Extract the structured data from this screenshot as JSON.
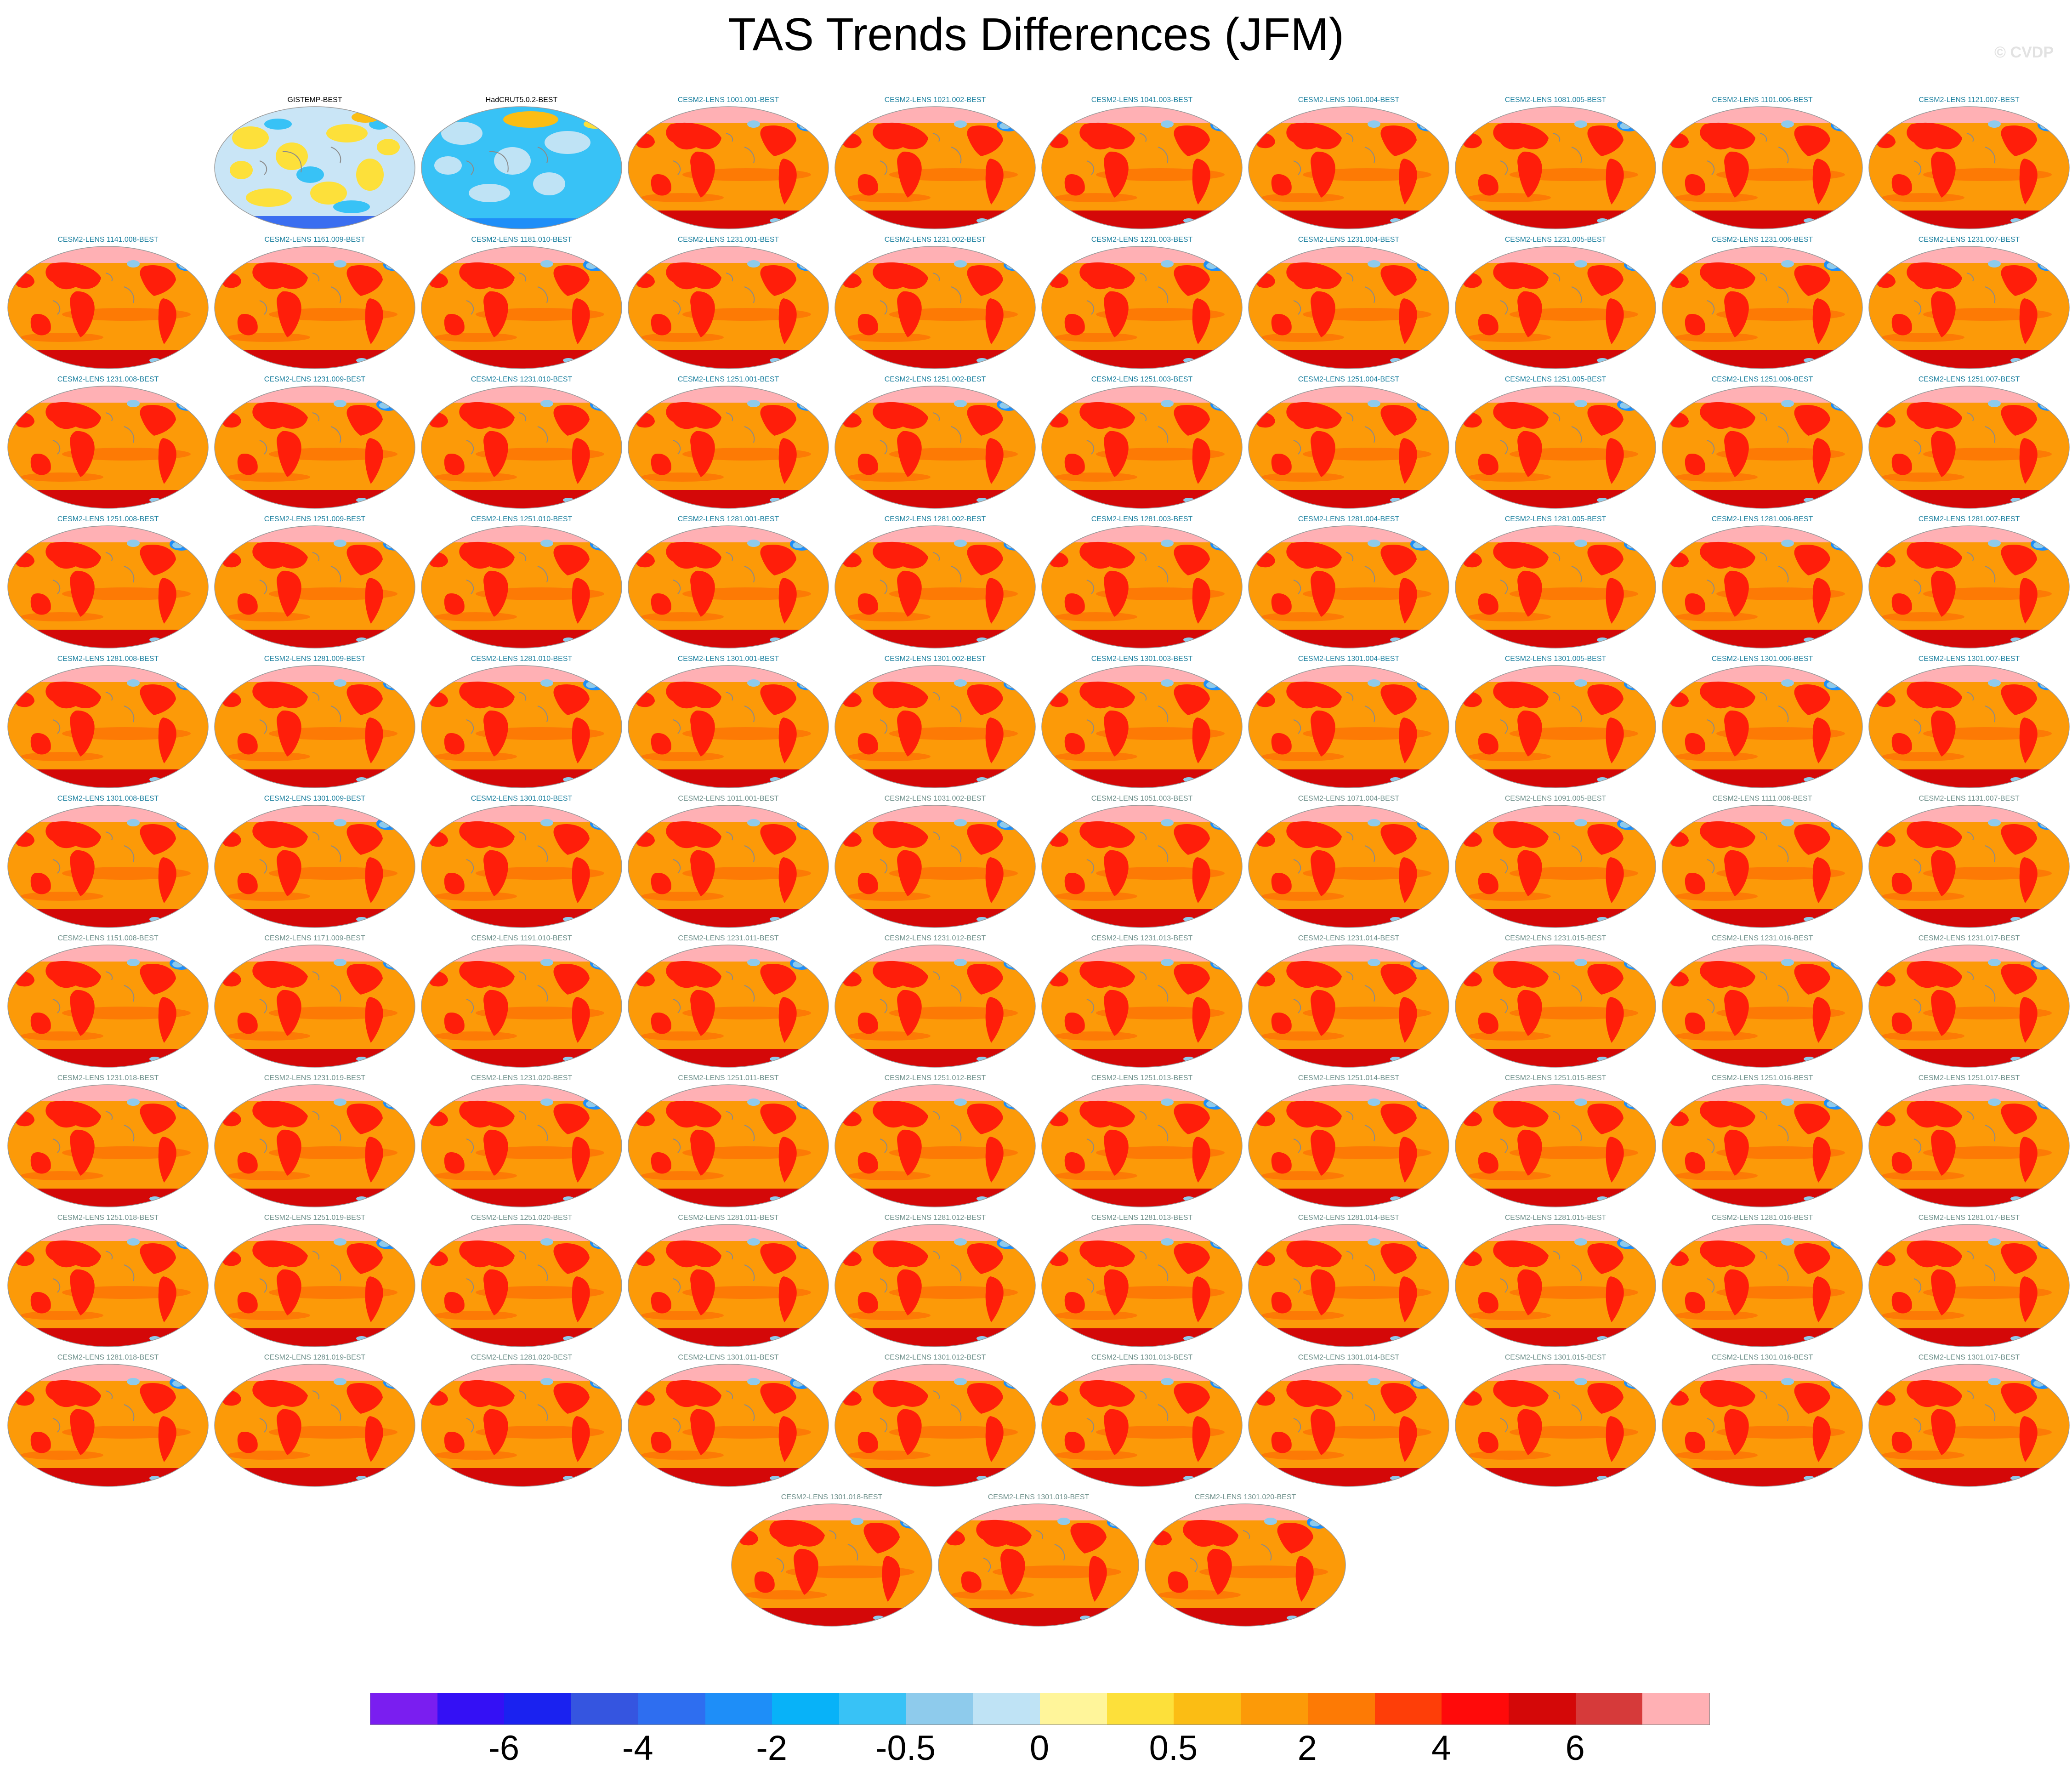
{
  "title": "TAS Trends Differences (JFM)",
  "credit": "© CVDP",
  "panel_rows": [
    [
      {
        "label": "GISTEMP-BEST",
        "type": "obs-a"
      },
      {
        "label": "HadCRUT5.0.2-BEST",
        "type": "obs-b"
      },
      {
        "label": "CESM2-LENS 1001.001-BEST",
        "type": "model"
      },
      {
        "label": "CESM2-LENS 1021.002-BEST",
        "type": "model"
      },
      {
        "label": "CESM2-LENS 1041.003-BEST",
        "type": "model"
      },
      {
        "label": "CESM2-LENS 1061.004-BEST",
        "type": "model"
      },
      {
        "label": "CESM2-LENS 1081.005-BEST",
        "type": "model"
      },
      {
        "label": "CESM2-LENS 1101.006-BEST",
        "type": "model"
      },
      {
        "label": "CESM2-LENS 1121.007-BEST",
        "type": "model"
      }
    ],
    [
      {
        "label": "CESM2-LENS 1141.008-BEST",
        "type": "model"
      },
      {
        "label": "CESM2-LENS 1161.009-BEST",
        "type": "model"
      },
      {
        "label": "CESM2-LENS 1181.010-BEST",
        "type": "model"
      },
      {
        "label": "CESM2-LENS 1231.001-BEST",
        "type": "model"
      },
      {
        "label": "CESM2-LENS 1231.002-BEST",
        "type": "model"
      },
      {
        "label": "CESM2-LENS 1231.003-BEST",
        "type": "model"
      },
      {
        "label": "CESM2-LENS 1231.004-BEST",
        "type": "model"
      },
      {
        "label": "CESM2-LENS 1231.005-BEST",
        "type": "model"
      },
      {
        "label": "CESM2-LENS 1231.006-BEST",
        "type": "model"
      },
      {
        "label": "CESM2-LENS 1231.007-BEST",
        "type": "model"
      }
    ],
    [
      {
        "label": "CESM2-LENS 1231.008-BEST",
        "type": "model"
      },
      {
        "label": "CESM2-LENS 1231.009-BEST",
        "type": "model"
      },
      {
        "label": "CESM2-LENS 1231.010-BEST",
        "type": "model"
      },
      {
        "label": "CESM2-LENS 1251.001-BEST",
        "type": "model"
      },
      {
        "label": "CESM2-LENS 1251.002-BEST",
        "type": "model"
      },
      {
        "label": "CESM2-LENS 1251.003-BEST",
        "type": "model"
      },
      {
        "label": "CESM2-LENS 1251.004-BEST",
        "type": "model"
      },
      {
        "label": "CESM2-LENS 1251.005-BEST",
        "type": "model"
      },
      {
        "label": "CESM2-LENS 1251.006-BEST",
        "type": "model"
      },
      {
        "label": "CESM2-LENS 1251.007-BEST",
        "type": "model"
      }
    ],
    [
      {
        "label": "CESM2-LENS 1251.008-BEST",
        "type": "model"
      },
      {
        "label": "CESM2-LENS 1251.009-BEST",
        "type": "model"
      },
      {
        "label": "CESM2-LENS 1251.010-BEST",
        "type": "model"
      },
      {
        "label": "CESM2-LENS 1281.001-BEST",
        "type": "model"
      },
      {
        "label": "CESM2-LENS 1281.002-BEST",
        "type": "model"
      },
      {
        "label": "CESM2-LENS 1281.003-BEST",
        "type": "model"
      },
      {
        "label": "CESM2-LENS 1281.004-BEST",
        "type": "model"
      },
      {
        "label": "CESM2-LENS 1281.005-BEST",
        "type": "model"
      },
      {
        "label": "CESM2-LENS 1281.006-BEST",
        "type": "model"
      },
      {
        "label": "CESM2-LENS 1281.007-BEST",
        "type": "model"
      }
    ],
    [
      {
        "label": "CESM2-LENS 1281.008-BEST",
        "type": "model"
      },
      {
        "label": "CESM2-LENS 1281.009-BEST",
        "type": "model"
      },
      {
        "label": "CESM2-LENS 1281.010-BEST",
        "type": "model"
      },
      {
        "label": "CESM2-LENS 1301.001-BEST",
        "type": "model"
      },
      {
        "label": "CESM2-LENS 1301.002-BEST",
        "type": "model"
      },
      {
        "label": "CESM2-LENS 1301.003-BEST",
        "type": "model"
      },
      {
        "label": "CESM2-LENS 1301.004-BEST",
        "type": "model"
      },
      {
        "label": "CESM2-LENS 1301.005-BEST",
        "type": "model"
      },
      {
        "label": "CESM2-LENS 1301.006-BEST",
        "type": "model"
      },
      {
        "label": "CESM2-LENS 1301.007-BEST",
        "type": "model"
      }
    ],
    [
      {
        "label": "CESM2-LENS 1301.008-BEST",
        "type": "model"
      },
      {
        "label": "CESM2-LENS 1301.009-BEST",
        "type": "model"
      },
      {
        "label": "CESM2-LENS 1301.010-BEST",
        "type": "model"
      },
      {
        "label": "CESM2-LENS 1011.001-BEST",
        "type": "model",
        "muted": true
      },
      {
        "label": "CESM2-LENS 1031.002-BEST",
        "type": "model",
        "muted": true
      },
      {
        "label": "CESM2-LENS 1051.003-BEST",
        "type": "model",
        "muted": true
      },
      {
        "label": "CESM2-LENS 1071.004-BEST",
        "type": "model",
        "muted": true
      },
      {
        "label": "CESM2-LENS 1091.005-BEST",
        "type": "model",
        "muted": true
      },
      {
        "label": "CESM2-LENS 1111.006-BEST",
        "type": "model",
        "muted": true
      },
      {
        "label": "CESM2-LENS 1131.007-BEST",
        "type": "model",
        "muted": true
      }
    ],
    [
      {
        "label": "CESM2-LENS 1151.008-BEST",
        "type": "model",
        "muted": true
      },
      {
        "label": "CESM2-LENS 1171.009-BEST",
        "type": "model",
        "muted": true
      },
      {
        "label": "CESM2-LENS 1191.010-BEST",
        "type": "model",
        "muted": true
      },
      {
        "label": "CESM2-LENS 1231.011-BEST",
        "type": "model",
        "muted": true
      },
      {
        "label": "CESM2-LENS 1231.012-BEST",
        "type": "model",
        "muted": true
      },
      {
        "label": "CESM2-LENS 1231.013-BEST",
        "type": "model",
        "muted": true
      },
      {
        "label": "CESM2-LENS 1231.014-BEST",
        "type": "model",
        "muted": true
      },
      {
        "label": "CESM2-LENS 1231.015-BEST",
        "type": "model",
        "muted": true
      },
      {
        "label": "CESM2-LENS 1231.016-BEST",
        "type": "model",
        "muted": true
      },
      {
        "label": "CESM2-LENS 1231.017-BEST",
        "type": "model",
        "muted": true
      }
    ],
    [
      {
        "label": "CESM2-LENS 1231.018-BEST",
        "type": "model",
        "muted": true
      },
      {
        "label": "CESM2-LENS 1231.019-BEST",
        "type": "model",
        "muted": true
      },
      {
        "label": "CESM2-LENS 1231.020-BEST",
        "type": "model",
        "muted": true
      },
      {
        "label": "CESM2-LENS 1251.011-BEST",
        "type": "model",
        "muted": true
      },
      {
        "label": "CESM2-LENS 1251.012-BEST",
        "type": "model",
        "muted": true
      },
      {
        "label": "CESM2-LENS 1251.013-BEST",
        "type": "model",
        "muted": true
      },
      {
        "label": "CESM2-LENS 1251.014-BEST",
        "type": "model",
        "muted": true
      },
      {
        "label": "CESM2-LENS 1251.015-BEST",
        "type": "model",
        "muted": true
      },
      {
        "label": "CESM2-LENS 1251.016-BEST",
        "type": "model",
        "muted": true
      },
      {
        "label": "CESM2-LENS 1251.017-BEST",
        "type": "model",
        "muted": true
      }
    ],
    [
      {
        "label": "CESM2-LENS 1251.018-BEST",
        "type": "model",
        "muted": true
      },
      {
        "label": "CESM2-LENS 1251.019-BEST",
        "type": "model",
        "muted": true
      },
      {
        "label": "CESM2-LENS 1251.020-BEST",
        "type": "model",
        "muted": true
      },
      {
        "label": "CESM2-LENS 1281.011-BEST",
        "type": "model",
        "muted": true
      },
      {
        "label": "CESM2-LENS 1281.012-BEST",
        "type": "model",
        "muted": true
      },
      {
        "label": "CESM2-LENS 1281.013-BEST",
        "type": "model",
        "muted": true
      },
      {
        "label": "CESM2-LENS 1281.014-BEST",
        "type": "model",
        "muted": true
      },
      {
        "label": "CESM2-LENS 1281.015-BEST",
        "type": "model",
        "muted": true
      },
      {
        "label": "CESM2-LENS 1281.016-BEST",
        "type": "model",
        "muted": true
      },
      {
        "label": "CESM2-LENS 1281.017-BEST",
        "type": "model",
        "muted": true
      }
    ],
    [
      {
        "label": "CESM2-LENS 1281.018-BEST",
        "type": "model",
        "muted": true
      },
      {
        "label": "CESM2-LENS 1281.019-BEST",
        "type": "model",
        "muted": true
      },
      {
        "label": "CESM2-LENS 1281.020-BEST",
        "type": "model",
        "muted": true
      },
      {
        "label": "CESM2-LENS 1301.011-BEST",
        "type": "model",
        "muted": true
      },
      {
        "label": "CESM2-LENS 1301.012-BEST",
        "type": "model",
        "muted": true
      },
      {
        "label": "CESM2-LENS 1301.013-BEST",
        "type": "model",
        "muted": true
      },
      {
        "label": "CESM2-LENS 1301.014-BEST",
        "type": "model",
        "muted": true
      },
      {
        "label": "CESM2-LENS 1301.015-BEST",
        "type": "model",
        "muted": true
      },
      {
        "label": "CESM2-LENS 1301.016-BEST",
        "type": "model",
        "muted": true
      },
      {
        "label": "CESM2-LENS 1301.017-BEST",
        "type": "model",
        "muted": true
      }
    ],
    [
      {
        "label": "CESM2-LENS 1301.018-BEST",
        "type": "model",
        "muted": true
      },
      {
        "label": "CESM2-LENS 1301.019-BEST",
        "type": "model",
        "muted": true
      },
      {
        "label": "CESM2-LENS 1301.020-BEST",
        "type": "model",
        "muted": true
      }
    ]
  ],
  "colorbar": {
    "colors": [
      "#7a1ef0",
      "#3410f5",
      "#1a22f0",
      "#3555e0",
      "#2e6ef0",
      "#1e8ef8",
      "#08b2f8",
      "#38c2f6",
      "#8ecbec",
      "#bfe3f5",
      "#fff59a",
      "#fde03a",
      "#fbbd14",
      "#fc9a08",
      "#fd7a05",
      "#fe3e08",
      "#ff0a0a",
      "#d40808",
      "#d63a3a",
      "#ffb0b4"
    ],
    "labels": [
      "-6",
      "-4",
      "-2",
      "-0.5",
      "0",
      "0.5",
      "2",
      "4",
      "6"
    ]
  },
  "palettes": {
    "model_ocean": "#fc9a08",
    "model_land": "#ff1e0a",
    "model_warm": "#fd7a05",
    "model_hot": "#d40808",
    "model_arctic": "#ffb0b4",
    "model_cold": "#1e8ef8",
    "model_light": "#8ecbec",
    "obs_bg": "#c9e5f6",
    "obs_yellow": "#fde03a",
    "obs_blue": "#38c2f6",
    "obs_orange": "#fbbd14",
    "obs_b_bg": "#38c2f6",
    "obs_b_light": "#bfe3f5",
    "coast": "#8a8a8a"
  }
}
